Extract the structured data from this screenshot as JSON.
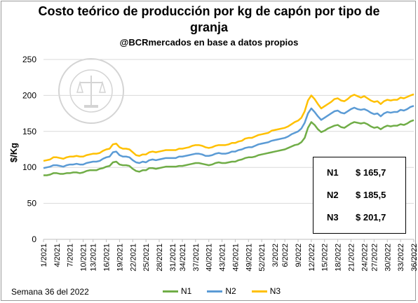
{
  "chart_data": {
    "type": "line",
    "title_line1": "Costo teórico de producción por kg de capón por tipo de",
    "title_line2": "granja",
    "subtitle": "@BCRmercados en base a datos propios",
    "ylabel": "$/Kg",
    "xlabel": "",
    "ylim": [
      0,
      250
    ],
    "yticks": [
      "0",
      "50",
      "100",
      "150",
      "200",
      "250"
    ],
    "grid": true,
    "legend_position": "bottom",
    "tick_labels": [
      "1/2021",
      "4/2021",
      "7/2021",
      "10/2021",
      "13/2021",
      "16/2021",
      "19/2021",
      "22/2021",
      "25/2021",
      "28/2021",
      "31/2021",
      "34/2021",
      "37/2021",
      "40/2021",
      "43/2021",
      "46/2021",
      "49/2021",
      "52/2021",
      "3/2022",
      "6/2022",
      "9/2022",
      "12/2022",
      "15/2022",
      "18/2022",
      "21/2022",
      "24/2022",
      "27/2022",
      "30/2022",
      "33/2022",
      "36/2022"
    ],
    "series": [
      {
        "name": "N1",
        "color": "#70ad47",
        "values": [
          89,
          89,
          90,
          92,
          92,
          91,
          91,
          92,
          92,
          93,
          93,
          92,
          93,
          95,
          96,
          96,
          96,
          98,
          99,
          101,
          102,
          107,
          108,
          104,
          103,
          103,
          102,
          98,
          95,
          94,
          96,
          96,
          99,
          99,
          98,
          99,
          100,
          101,
          101,
          101,
          101,
          102,
          102,
          103,
          104,
          105,
          106,
          106,
          105,
          104,
          103,
          104,
          106,
          107,
          106,
          106,
          107,
          108,
          108,
          110,
          111,
          113,
          114,
          114,
          115,
          117,
          118,
          119,
          120,
          121,
          122,
          123,
          124,
          125,
          127,
          129,
          131,
          132,
          135,
          141,
          155,
          163,
          159,
          153,
          149,
          151,
          154,
          156,
          158,
          159,
          156,
          155,
          158,
          161,
          163,
          162,
          161,
          162,
          160,
          157,
          155,
          156,
          153,
          156,
          158,
          157,
          158,
          158,
          160,
          159,
          161,
          164,
          165.7
        ]
      },
      {
        "name": "N2",
        "color": "#5b9bd5",
        "values": [
          99,
          100,
          101,
          103,
          103,
          102,
          101,
          103,
          104,
          104,
          105,
          104,
          104,
          106,
          107,
          108,
          108,
          109,
          112,
          114,
          115,
          121,
          122,
          117,
          115,
          115,
          114,
          110,
          107,
          106,
          108,
          107,
          110,
          111,
          110,
          111,
          112,
          113,
          113,
          113,
          113,
          115,
          115,
          116,
          117,
          118,
          119,
          119,
          118,
          116,
          116,
          117,
          119,
          120,
          119,
          119,
          120,
          122,
          122,
          124,
          125,
          127,
          128,
          128,
          130,
          132,
          133,
          134,
          135,
          137,
          138,
          139,
          140,
          141,
          143,
          146,
          148,
          150,
          154,
          162,
          175,
          182,
          177,
          171,
          166,
          169,
          172,
          175,
          178,
          179,
          176,
          175,
          178,
          181,
          183,
          181,
          180,
          181,
          179,
          176,
          174,
          175,
          171,
          175,
          177,
          176,
          177,
          177,
          180,
          179,
          181,
          184,
          185.5
        ]
      },
      {
        "name": "N3",
        "color": "#ffc000",
        "values": [
          109,
          110,
          111,
          114,
          114,
          113,
          112,
          114,
          115,
          115,
          116,
          115,
          115,
          117,
          118,
          119,
          119,
          120,
          123,
          125,
          126,
          132,
          133,
          128,
          126,
          126,
          125,
          121,
          117,
          116,
          118,
          118,
          121,
          122,
          121,
          122,
          123,
          124,
          124,
          124,
          124,
          126,
          126,
          127,
          128,
          130,
          131,
          131,
          130,
          128,
          127,
          128,
          130,
          131,
          131,
          131,
          132,
          134,
          134,
          136,
          137,
          140,
          141,
          141,
          143,
          145,
          146,
          147,
          148,
          151,
          152,
          153,
          154,
          155,
          157,
          160,
          163,
          165,
          169,
          178,
          193,
          200,
          195,
          188,
          182,
          185,
          188,
          191,
          195,
          196,
          193,
          192,
          195,
          199,
          201,
          199,
          197,
          199,
          196,
          193,
          191,
          192,
          188,
          192,
          194,
          193,
          194,
          194,
          197,
          196,
          198,
          200,
          201.7
        ]
      }
    ]
  },
  "values_box": [
    {
      "label": "N1",
      "value": "$ 165,7"
    },
    {
      "label": "N2",
      "value": "$ 185,5"
    },
    {
      "label": "N3",
      "value": "$ 201,7"
    }
  ],
  "footnote": "Semana 36 del 2022",
  "watermark": "BOLSA DE COMERCIO DE ROSARIO"
}
